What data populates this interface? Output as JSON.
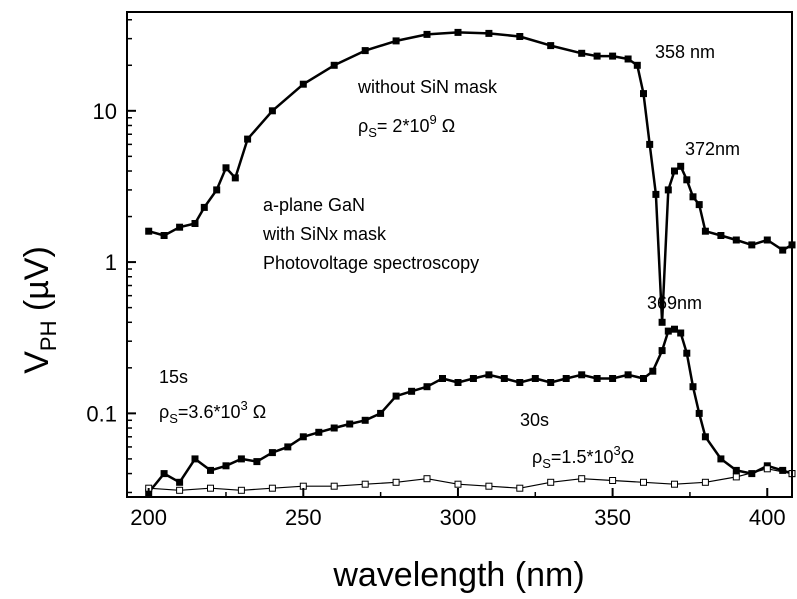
{
  "chart_data": {
    "type": "line",
    "xlabel": "wavelength (nm)",
    "ylabel_main": "V",
    "ylabel_sub": "PH",
    "ylabel_unit": " (µV)",
    "xlim": [
      193,
      408
    ],
    "ylim": [
      0.028,
      45
    ],
    "y_scale": "log",
    "grid": false,
    "x_ticks": [
      200,
      250,
      300,
      350,
      400
    ],
    "x_tick_labels": [
      "200",
      "250",
      "300",
      "350",
      "400"
    ],
    "y_ticks": [
      0.1,
      1,
      10
    ],
    "y_tick_labels": [
      "0.1",
      "1",
      "10"
    ],
    "annotations": {
      "label_358": "358 nm",
      "without_mask": "without SiN mask",
      "rho_top_prefix": "ρ",
      "rho_top_sub": "S",
      "rho_top_mid": "= 2*10",
      "rho_top_exp": "9",
      "rho_top_unit": " Ω",
      "label_372": "372nm",
      "sample_line1": "a-plane GaN",
      "sample_line2": "with SiNx mask",
      "sample_line3": "Photovoltage spectroscopy",
      "label_369": "369nm",
      "label_15s": "15s",
      "rho_15_prefix": "ρ",
      "rho_15_sub": "S",
      "rho_15_mid": "=3.6*10",
      "rho_15_exp": "3",
      "rho_15_unit": " Ω",
      "label_30s": "30s",
      "rho_30_prefix": "ρ",
      "rho_30_sub": "S",
      "rho_30_mid": "=1.5*10",
      "rho_30_exp": "3",
      "rho_30_unit": "Ω"
    },
    "series": [
      {
        "marker": "filled-square",
        "x": [
          200,
          205,
          210,
          215,
          218,
          222,
          225,
          228,
          232,
          240,
          250,
          260,
          270,
          280,
          290,
          300,
          310,
          320,
          330,
          340,
          345,
          350,
          355,
          358,
          360,
          362,
          364,
          366,
          368,
          370,
          372,
          374,
          376,
          378,
          380,
          385,
          390,
          395,
          400,
          405,
          408
        ],
        "y": [
          1.6,
          1.5,
          1.7,
          1.8,
          2.3,
          3.0,
          4.2,
          3.6,
          6.5,
          10,
          15,
          20,
          25,
          29,
          32,
          33,
          32.5,
          31,
          27,
          24,
          23,
          23,
          22,
          20,
          13,
          6,
          2.8,
          0.4,
          3.0,
          4.0,
          4.3,
          3.5,
          2.7,
          2.4,
          1.6,
          1.5,
          1.4,
          1.3,
          1.4,
          1.2,
          1.3
        ]
      },
      {
        "marker": "filled-square",
        "x": [
          200,
          205,
          210,
          215,
          220,
          225,
          230,
          235,
          240,
          245,
          250,
          255,
          260,
          265,
          270,
          275,
          280,
          285,
          290,
          295,
          300,
          305,
          310,
          315,
          320,
          325,
          330,
          335,
          340,
          345,
          350,
          355,
          360,
          363,
          366,
          368,
          370,
          372,
          374,
          376,
          378,
          380,
          385,
          390,
          395,
          400,
          405,
          408
        ],
        "y": [
          0.03,
          0.04,
          0.035,
          0.05,
          0.042,
          0.045,
          0.05,
          0.048,
          0.055,
          0.06,
          0.07,
          0.075,
          0.08,
          0.085,
          0.09,
          0.1,
          0.13,
          0.14,
          0.15,
          0.17,
          0.16,
          0.17,
          0.18,
          0.17,
          0.16,
          0.17,
          0.16,
          0.17,
          0.18,
          0.17,
          0.17,
          0.18,
          0.17,
          0.19,
          0.26,
          0.35,
          0.36,
          0.34,
          0.25,
          0.15,
          0.1,
          0.07,
          0.05,
          0.042,
          0.04,
          0.045,
          0.042,
          0.04
        ]
      },
      {
        "marker": "open-square",
        "x": [
          200,
          210,
          220,
          230,
          240,
          250,
          260,
          270,
          280,
          290,
          300,
          310,
          320,
          330,
          340,
          350,
          360,
          370,
          380,
          390,
          400,
          408
        ],
        "y": [
          0.032,
          0.031,
          0.032,
          0.031,
          0.032,
          0.033,
          0.033,
          0.034,
          0.035,
          0.037,
          0.034,
          0.033,
          0.032,
          0.035,
          0.037,
          0.036,
          0.035,
          0.034,
          0.035,
          0.038,
          0.043,
          0.04
        ]
      }
    ]
  }
}
